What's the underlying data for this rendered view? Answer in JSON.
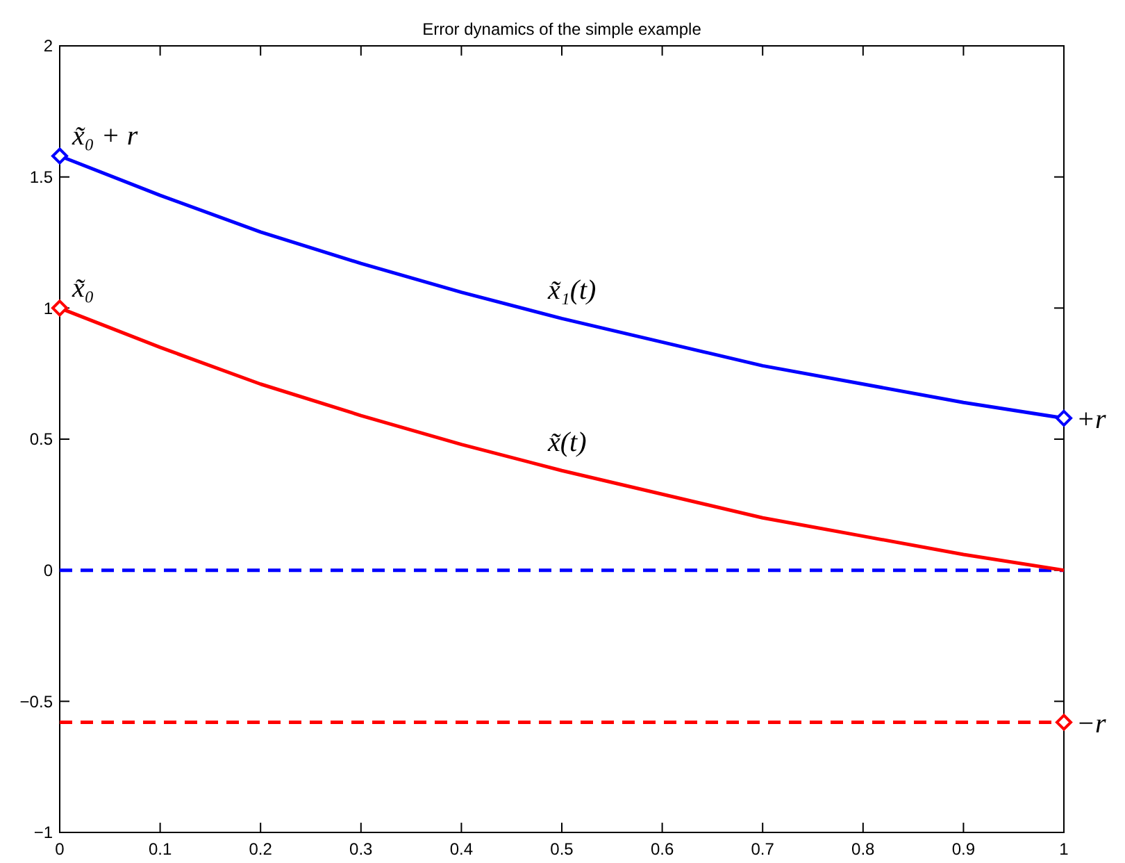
{
  "chart_data": {
    "type": "line",
    "title": "Error dynamics of the simple example",
    "xlim": [
      0,
      1
    ],
    "xticks": [
      0,
      0.1,
      0.2,
      0.3,
      0.4,
      0.5,
      0.6,
      0.7,
      0.8,
      0.9,
      1
    ],
    "ylim": [
      -1,
      2
    ],
    "yticks": [
      {
        "value": -1,
        "label": "−1"
      },
      {
        "value": -0.5,
        "label": "−0.5"
      },
      0,
      0.5,
      1,
      1.5,
      2
    ],
    "grid": false,
    "series": [
      {
        "color": "#0000ff",
        "line_style": "solid",
        "marker": "none",
        "x": [
          0,
          0.1,
          0.2,
          0.3,
          0.4,
          0.5,
          0.6,
          0.7,
          0.8,
          0.9,
          1
        ],
        "values": [
          1.58,
          1.43,
          1.29,
          1.17,
          1.06,
          0.96,
          0.87,
          0.78,
          0.71,
          0.64,
          0.58
        ]
      },
      {
        "color": "#ff0000",
        "line_style": "solid",
        "marker": "none",
        "x": [
          0,
          0.1,
          0.2,
          0.3,
          0.4,
          0.5,
          0.6,
          0.7,
          0.8,
          0.9,
          1
        ],
        "values": [
          1.0,
          0.85,
          0.71,
          0.59,
          0.48,
          0.38,
          0.29,
          0.2,
          0.13,
          0.06,
          0.0
        ]
      },
      {
        "type": "scatter",
        "color": "#0000ff",
        "marker": "diamond",
        "x": [
          0,
          1
        ],
        "values": [
          1.58,
          0.58
        ]
      },
      {
        "type": "scatter",
        "color": "#ff0000",
        "marker": "diamond",
        "x": [
          0,
          1
        ],
        "values": [
          1.0,
          -0.58
        ]
      }
    ],
    "ref_lines": [
      {
        "axis": "y",
        "value": 0,
        "color": "#0000ff",
        "line_style": "dashed"
      },
      {
        "axis": "y",
        "value": -0.58,
        "color": "#ff0000",
        "line_style": "dashed",
        "label": "−r"
      }
    ],
    "annotations": [
      {
        "text": "x̃₀ + r",
        "x": 0,
        "y": 1.58
      },
      {
        "text": "x̃₀",
        "x": 0,
        "y": 1.0
      },
      {
        "text": "x̃₁(t)",
        "x": 0.5,
        "y": 0.96
      },
      {
        "text": "x̃(t)",
        "x": 0.5,
        "y": 0.38
      },
      {
        "text": "+r",
        "x": 1,
        "y": 0.58
      }
    ]
  }
}
